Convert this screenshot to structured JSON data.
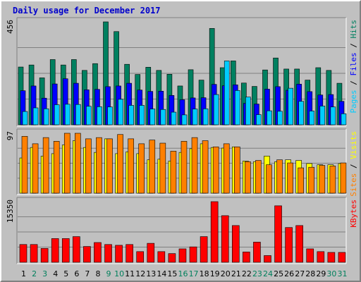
{
  "chart_data": {
    "type": "bar",
    "title": "Daily usage for December 2017",
    "categories": [
      "1",
      "2",
      "3",
      "4",
      "5",
      "6",
      "7",
      "8",
      "9",
      "10",
      "11",
      "12",
      "13",
      "14",
      "15",
      "16",
      "17",
      "18",
      "19",
      "20",
      "21",
      "22",
      "23",
      "24",
      "25",
      "26",
      "27",
      "28",
      "29",
      "30",
      "31"
    ],
    "weekend_days": [
      2,
      3,
      9,
      10,
      16,
      17,
      23,
      24,
      30,
      31
    ],
    "panels": [
      {
        "name": "pages-files-hits",
        "max_label": "456",
        "ymax": 456,
        "legend": [
          {
            "text": "Pages",
            "color": "#00ccff"
          },
          {
            "text": " / ",
            "color": "#000000"
          },
          {
            "text": "Files",
            "color": "#0000ff"
          },
          {
            "text": " / ",
            "color": "#000000"
          },
          {
            "text": "Hits",
            "color": "#008060"
          }
        ],
        "series": [
          {
            "name": "Hits",
            "color": "#008060",
            "values": [
              256,
              265,
              208,
              289,
              265,
              289,
              241,
              271,
              456,
              413,
              268,
              223,
              255,
              241,
              224,
              172,
              244,
              198,
              427,
              253,
              283,
              185,
              170,
              243,
              296,
              247,
              247,
              198,
              253,
              241,
              184
            ]
          },
          {
            "name": "Files",
            "color": "#0000ff",
            "values": [
              151,
              172,
              118,
              181,
              204,
              184,
              155,
              157,
              169,
              172,
              184,
              154,
              148,
              149,
              130,
              111,
              119,
              120,
              179,
              173,
              177,
              95,
              92,
              158,
              169,
              153,
              180,
              147,
              132,
              134,
              104
            ]
          },
          {
            "name": "Pages",
            "color": "#00ccff",
            "values": [
              59,
              75,
              71,
              89,
              91,
              90,
              82,
              80,
              79,
              113,
              86,
              86,
              70,
              68,
              56,
              44,
              70,
              71,
              134,
              283,
              152,
              123,
              45,
              62,
              60,
              162,
              104,
              61,
              83,
              79,
              49
            ]
          }
        ]
      },
      {
        "name": "sites-visits",
        "max_label": "97",
        "ymax": 97,
        "legend": [
          {
            "text": "Sites",
            "color": "#ff8000"
          },
          {
            "text": " / ",
            "color": "#000000"
          },
          {
            "text": "Visits",
            "color": "#ffff00"
          }
        ],
        "series": [
          {
            "name": "Visits",
            "color": "#ffff00",
            "values": [
              57,
              74,
              60,
              64,
              78,
              85,
              74,
              66,
              88,
              64,
              67,
              64,
              54,
              55,
              52,
              66,
              72,
              80,
              74,
              73,
              75,
              52,
              51,
              60,
              51,
              54,
              53,
              48,
              46,
              46,
              48
            ]
          },
          {
            "name": "Sites",
            "color": "#ff8000",
            "values": [
              92,
              80,
              90,
              84,
              97,
              97,
              88,
              90,
              88,
              95,
              88,
              80,
              86,
              81,
              68,
              84,
              90,
              85,
              75,
              80,
              75,
              51,
              53,
              46,
              54,
              49,
              41,
              42,
              45,
              44,
              49
            ]
          }
        ]
      },
      {
        "name": "kbytes",
        "max_label": "15350",
        "ymax": 15350,
        "legend": [
          {
            "text": "KBytes",
            "color": "#ff0000"
          }
        ],
        "series": [
          {
            "name": "KBytes",
            "color": "#ff0000",
            "values": [
              4500,
              4500,
              3500,
              6000,
              6000,
              6500,
              4000,
              5000,
              4500,
              4300,
              4500,
              2700,
              4800,
              2700,
              2200,
              3400,
              3900,
              6500,
              15350,
              11800,
              9300,
              2600,
              5100,
              1700,
              14300,
              8800,
              9300,
              3400,
              2700,
              2500,
              2500
            ]
          }
        ]
      }
    ]
  }
}
